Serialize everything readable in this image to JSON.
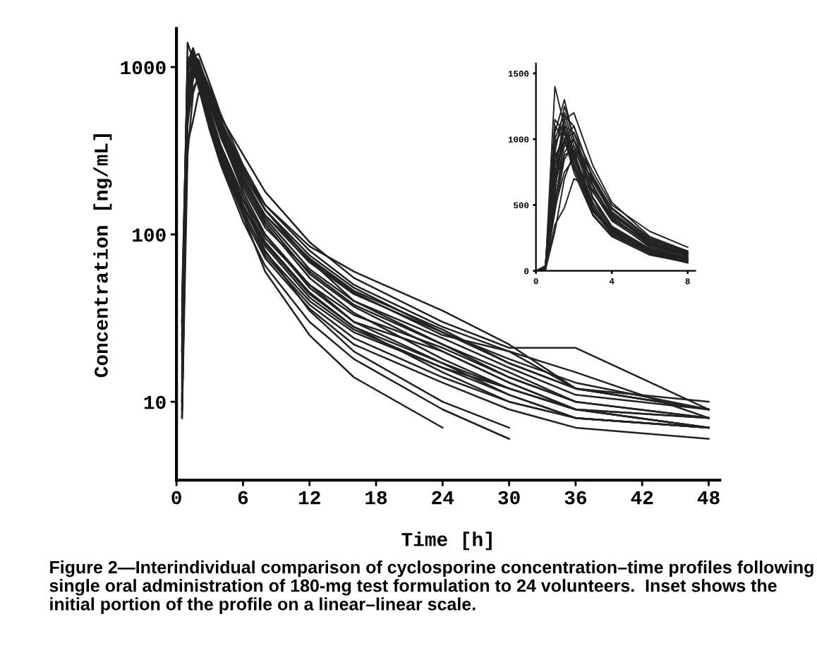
{
  "chart_data": [
    {
      "type": "line",
      "xlabel": "Time [h]",
      "ylabel": "Concentration [ng/mL]",
      "log": "y",
      "xlim": [
        0,
        49
      ],
      "xticks": [
        0,
        6,
        12,
        18,
        24,
        30,
        36,
        42,
        48
      ],
      "ylim": [
        3.4,
        1700
      ],
      "yticks": [
        10,
        100,
        1000
      ],
      "x": [
        0.5,
        1,
        1.5,
        2,
        3,
        4,
        6,
        8,
        12,
        16,
        24,
        30,
        36,
        48
      ],
      "annotations": [
        "Figure 2—Interindividual comparison of cyclosporine concentration–time profiles following single oral administration of 180-mg test formulation to 24 volunteers.  Inset shows the initial portion of the profile on a linear–linear scale."
      ],
      "series": [
        {
          "color": "#222222",
          "values": [
            10,
            1400,
            1100,
            800,
            450,
            300,
            160,
            100,
            50,
            30,
            20,
            13,
            9,
            7
          ]
        },
        {
          "color": "#222222",
          "values": [
            20,
            900,
            1250,
            1000,
            600,
            380,
            190,
            110,
            60,
            38,
            22,
            15,
            10,
            8
          ]
        },
        {
          "color": "#222222",
          "values": [
            8,
            600,
            1150,
            1200,
            800,
            520,
            260,
            150,
            80,
            50,
            28,
            20,
            12,
            9
          ]
        },
        {
          "color": "#222222",
          "values": [
            15,
            500,
            1000,
            1100,
            700,
            450,
            230,
            140,
            70,
            45,
            25,
            20,
            15,
            8
          ]
        },
        {
          "color": "#222222",
          "values": [
            30,
            800,
            1100,
            900,
            520,
            330,
            160,
            90,
            45,
            28,
            15,
            10,
            8,
            7
          ]
        },
        {
          "color": "#222222",
          "values": [
            8,
            300,
            700,
            900,
            700,
            480,
            250,
            140,
            70,
            40,
            22,
            14,
            10,
            null
          ]
        },
        {
          "color": "#222222",
          "values": [
            40,
            1000,
            1200,
            950,
            550,
            320,
            150,
            80,
            35,
            20,
            10,
            7,
            null,
            null
          ]
        },
        {
          "color": "#222222",
          "values": [
            10,
            700,
            1000,
            1050,
            750,
            500,
            300,
            180,
            90,
            55,
            30,
            21,
            21,
            9
          ]
        },
        {
          "color": "#222222",
          "values": [
            25,
            850,
            1050,
            850,
            480,
            300,
            140,
            75,
            38,
            24,
            14,
            10,
            8,
            7
          ]
        },
        {
          "color": "#222222",
          "values": [
            12,
            650,
            950,
            1000,
            650,
            400,
            200,
            115,
            55,
            34,
            18,
            12,
            9,
            8
          ]
        },
        {
          "color": "#222222",
          "values": [
            18,
            1100,
            1000,
            750,
            420,
            260,
            120,
            65,
            30,
            18,
            9,
            6,
            null,
            null
          ]
        },
        {
          "color": "#222222",
          "values": [
            9,
            450,
            850,
            950,
            680,
            430,
            210,
            125,
            62,
            40,
            24,
            16,
            11,
            9
          ]
        },
        {
          "color": "#222222",
          "values": [
            35,
            950,
            1150,
            900,
            500,
            310,
            145,
            85,
            42,
            27,
            16,
            11,
            8,
            7
          ]
        },
        {
          "color": "#222222",
          "values": [
            10,
            550,
            900,
            1000,
            720,
            470,
            240,
            150,
            85,
            60,
            35,
            22,
            12,
            10
          ]
        },
        {
          "color": "#222222",
          "values": [
            22,
            750,
            1000,
            820,
            470,
            290,
            130,
            60,
            25,
            14,
            7,
            null,
            null,
            null
          ]
        },
        {
          "color": "#222222",
          "values": [
            14,
            480,
            750,
            850,
            600,
            400,
            210,
            130,
            72,
            46,
            27,
            17,
            12,
            9
          ]
        },
        {
          "color": "#222222",
          "values": [
            30,
            1150,
            1050,
            780,
            430,
            270,
            130,
            72,
            36,
            22,
            13,
            9,
            7,
            6
          ]
        },
        {
          "color": "#222222",
          "values": [
            11,
            620,
            1100,
            1050,
            650,
            390,
            180,
            100,
            48,
            30,
            17,
            11,
            8,
            7
          ]
        },
        {
          "color": "#222222",
          "values": [
            16,
            350,
            480,
            700,
            620,
            420,
            230,
            140,
            75,
            48,
            26,
            18,
            13,
            9
          ]
        },
        {
          "color": "#222222",
          "values": [
            28,
            1050,
            1300,
            1000,
            560,
            340,
            170,
            95,
            50,
            33,
            21,
            14,
            10,
            8
          ]
        },
        {
          "color": "#222222",
          "values": [
            9,
            520,
            880,
            920,
            640,
            410,
            200,
            120,
            58,
            37,
            20,
            13,
            9,
            7
          ]
        },
        {
          "color": "#222222",
          "values": [
            20,
            880,
            980,
            800,
            460,
            280,
            135,
            78,
            40,
            26,
            16,
            12,
            9,
            8
          ]
        },
        {
          "color": "#222222",
          "values": [
            13,
            720,
            1180,
            1100,
            700,
            440,
            220,
            130,
            68,
            44,
            26,
            17,
            12,
            9
          ]
        },
        {
          "color": "#222222",
          "values": [
            24,
            980,
            1080,
            870,
            500,
            310,
            150,
            88,
            44,
            28,
            17,
            12,
            9,
            7
          ]
        }
      ]
    },
    {
      "type": "line",
      "xlim": [
        0,
        8.4
      ],
      "xticks": [
        0,
        4,
        8
      ],
      "ylim": [
        0,
        1575
      ],
      "yticks": [
        0,
        500,
        1000,
        1500
      ],
      "x": [
        0,
        0.5,
        1,
        1.5,
        2,
        3,
        4,
        6,
        8
      ],
      "series": [
        {
          "color": "#222222",
          "values": [
            0,
            10,
            1400,
            1100,
            800,
            450,
            300,
            160,
            100
          ]
        },
        {
          "color": "#222222",
          "values": [
            0,
            20,
            900,
            1250,
            1000,
            600,
            380,
            190,
            110
          ]
        },
        {
          "color": "#222222",
          "values": [
            0,
            8,
            600,
            1150,
            1200,
            800,
            520,
            260,
            150
          ]
        },
        {
          "color": "#222222",
          "values": [
            0,
            15,
            500,
            1000,
            1100,
            700,
            450,
            230,
            140
          ]
        },
        {
          "color": "#222222",
          "values": [
            0,
            30,
            800,
            1100,
            900,
            520,
            330,
            160,
            90
          ]
        },
        {
          "color": "#222222",
          "values": [
            0,
            8,
            300,
            700,
            900,
            700,
            480,
            250,
            140
          ]
        },
        {
          "color": "#222222",
          "values": [
            0,
            40,
            1000,
            1200,
            950,
            550,
            320,
            150,
            80
          ]
        },
        {
          "color": "#222222",
          "values": [
            0,
            10,
            700,
            1000,
            1050,
            750,
            500,
            300,
            180
          ]
        },
        {
          "color": "#222222",
          "values": [
            0,
            25,
            850,
            1050,
            850,
            480,
            300,
            140,
            75
          ]
        },
        {
          "color": "#222222",
          "values": [
            0,
            12,
            650,
            950,
            1000,
            650,
            400,
            200,
            115
          ]
        },
        {
          "color": "#222222",
          "values": [
            0,
            18,
            1100,
            1000,
            750,
            420,
            260,
            120,
            65
          ]
        },
        {
          "color": "#222222",
          "values": [
            0,
            9,
            450,
            850,
            950,
            680,
            430,
            210,
            125
          ]
        },
        {
          "color": "#222222",
          "values": [
            0,
            35,
            950,
            1150,
            900,
            500,
            310,
            145,
            85
          ]
        },
        {
          "color": "#222222",
          "values": [
            0,
            10,
            550,
            900,
            1000,
            720,
            470,
            240,
            150
          ]
        },
        {
          "color": "#222222",
          "values": [
            0,
            22,
            750,
            1000,
            820,
            470,
            290,
            130,
            60
          ]
        },
        {
          "color": "#222222",
          "values": [
            0,
            14,
            480,
            750,
            850,
            600,
            400,
            210,
            130
          ]
        },
        {
          "color": "#222222",
          "values": [
            0,
            30,
            1150,
            1050,
            780,
            430,
            270,
            130,
            72
          ]
        },
        {
          "color": "#222222",
          "values": [
            0,
            11,
            620,
            1100,
            1050,
            650,
            390,
            180,
            100
          ]
        },
        {
          "color": "#222222",
          "values": [
            0,
            16,
            350,
            480,
            700,
            620,
            420,
            230,
            140
          ]
        },
        {
          "color": "#222222",
          "values": [
            0,
            28,
            1050,
            1300,
            1000,
            560,
            340,
            170,
            95
          ]
        },
        {
          "color": "#222222",
          "values": [
            0,
            9,
            520,
            880,
            920,
            640,
            410,
            200,
            120
          ]
        },
        {
          "color": "#222222",
          "values": [
            0,
            20,
            880,
            980,
            800,
            460,
            280,
            135,
            78
          ]
        },
        {
          "color": "#222222",
          "values": [
            0,
            13,
            720,
            1180,
            1100,
            700,
            440,
            220,
            130
          ]
        },
        {
          "color": "#222222",
          "values": [
            0,
            24,
            980,
            1080,
            870,
            500,
            310,
            150,
            88
          ]
        }
      ]
    }
  ]
}
